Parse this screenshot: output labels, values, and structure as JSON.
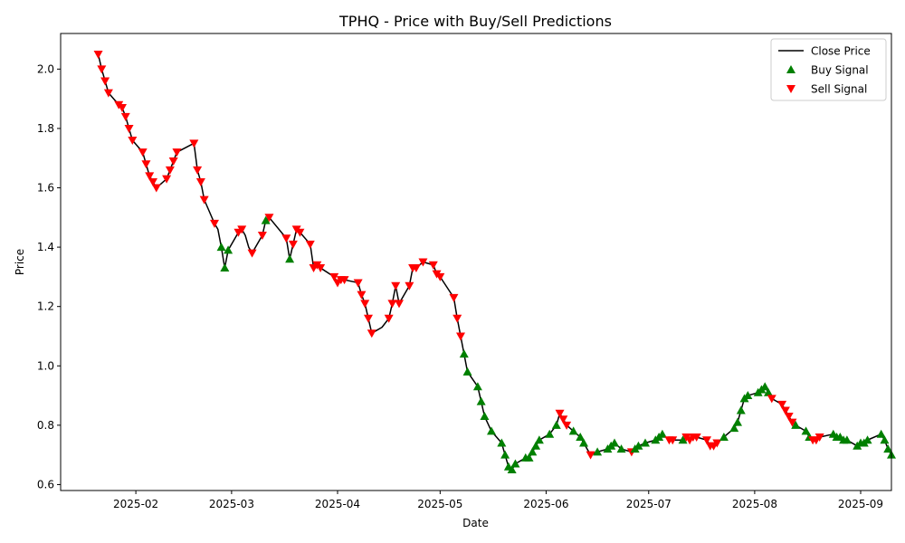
{
  "chart_data": {
    "type": "line",
    "title": "TPHQ - Price with Buy/Sell Predictions",
    "xlabel": "Date",
    "ylabel": "Price",
    "x_range": [
      "2025-01-10",
      "2025-09-10"
    ],
    "ylim": [
      0.58,
      2.12
    ],
    "x_ticks": [
      {
        "date": "2025-02-01",
        "label": "2025-02"
      },
      {
        "date": "2025-03-01",
        "label": "2025-03"
      },
      {
        "date": "2025-04-01",
        "label": "2025-04"
      },
      {
        "date": "2025-05-01",
        "label": "2025-05"
      },
      {
        "date": "2025-06-01",
        "label": "2025-06"
      },
      {
        "date": "2025-07-01",
        "label": "2025-07"
      },
      {
        "date": "2025-08-01",
        "label": "2025-08"
      },
      {
        "date": "2025-09-01",
        "label": "2025-09"
      }
    ],
    "y_ticks": [
      {
        "value": 0.6,
        "label": "0.6"
      },
      {
        "value": 0.8,
        "label": "0.8"
      },
      {
        "value": 1.0,
        "label": "1.0"
      },
      {
        "value": 1.2,
        "label": "1.2"
      },
      {
        "value": 1.4,
        "label": "1.4"
      },
      {
        "value": 1.6,
        "label": "1.6"
      },
      {
        "value": 1.8,
        "label": "1.8"
      },
      {
        "value": 2.0,
        "label": "2.0"
      }
    ],
    "grid": false,
    "legend": {
      "position": "upper right",
      "entries": [
        {
          "label": "Close Price",
          "kind": "line",
          "color": "#000000"
        },
        {
          "label": "Buy Signal",
          "kind": "buy",
          "color": "#008000"
        },
        {
          "label": "Sell Signal",
          "kind": "sell",
          "color": "#ff0000"
        }
      ]
    },
    "colors": {
      "line": "#000000",
      "buy": "#008000",
      "sell": "#ff0000"
    },
    "series": [
      {
        "name": "Close Price",
        "points": [
          {
            "date": "2025-01-21",
            "close": 2.05,
            "signal": "sell"
          },
          {
            "date": "2025-01-22",
            "close": 2.0,
            "signal": "sell"
          },
          {
            "date": "2025-01-23",
            "close": 1.96,
            "signal": "sell"
          },
          {
            "date": "2025-01-24",
            "close": 1.92,
            "signal": "sell"
          },
          {
            "date": "2025-01-27",
            "close": 1.88,
            "signal": "sell"
          },
          {
            "date": "2025-01-28",
            "close": 1.87,
            "signal": "sell"
          },
          {
            "date": "2025-01-29",
            "close": 1.84,
            "signal": "sell"
          },
          {
            "date": "2025-01-30",
            "close": 1.8,
            "signal": "sell"
          },
          {
            "date": "2025-01-31",
            "close": 1.76,
            "signal": "sell"
          },
          {
            "date": "2025-02-03",
            "close": 1.72,
            "signal": "sell"
          },
          {
            "date": "2025-02-04",
            "close": 1.68,
            "signal": "sell"
          },
          {
            "date": "2025-02-05",
            "close": 1.64,
            "signal": "sell"
          },
          {
            "date": "2025-02-06",
            "close": 1.62,
            "signal": "sell"
          },
          {
            "date": "2025-02-07",
            "close": 1.6,
            "signal": "sell"
          },
          {
            "date": "2025-02-10",
            "close": 1.63,
            "signal": "sell"
          },
          {
            "date": "2025-02-11",
            "close": 1.66,
            "signal": "sell"
          },
          {
            "date": "2025-02-12",
            "close": 1.69,
            "signal": "sell"
          },
          {
            "date": "2025-02-13",
            "close": 1.72,
            "signal": "sell"
          },
          {
            "date": "2025-02-18",
            "close": 1.75,
            "signal": "sell"
          },
          {
            "date": "2025-02-19",
            "close": 1.66,
            "signal": "sell"
          },
          {
            "date": "2025-02-20",
            "close": 1.62,
            "signal": "sell"
          },
          {
            "date": "2025-02-21",
            "close": 1.56,
            "signal": "sell"
          },
          {
            "date": "2025-02-24",
            "close": 1.48,
            "signal": "sell"
          },
          {
            "date": "2025-02-25",
            "close": 1.46,
            "signal": "none"
          },
          {
            "date": "2025-02-26",
            "close": 1.4,
            "signal": "buy"
          },
          {
            "date": "2025-02-27",
            "close": 1.33,
            "signal": "buy"
          },
          {
            "date": "2025-02-28",
            "close": 1.39,
            "signal": "buy"
          },
          {
            "date": "2025-03-03",
            "close": 1.45,
            "signal": "sell"
          },
          {
            "date": "2025-03-04",
            "close": 1.46,
            "signal": "sell"
          },
          {
            "date": "2025-03-05",
            "close": 1.44,
            "signal": "none"
          },
          {
            "date": "2025-03-06",
            "close": 1.4,
            "signal": "none"
          },
          {
            "date": "2025-03-07",
            "close": 1.38,
            "signal": "sell"
          },
          {
            "date": "2025-03-10",
            "close": 1.44,
            "signal": "sell"
          },
          {
            "date": "2025-03-11",
            "close": 1.49,
            "signal": "buy"
          },
          {
            "date": "2025-03-12",
            "close": 1.5,
            "signal": "sell"
          },
          {
            "date": "2025-03-17",
            "close": 1.43,
            "signal": "sell"
          },
          {
            "date": "2025-03-18",
            "close": 1.36,
            "signal": "buy"
          },
          {
            "date": "2025-03-19",
            "close": 1.41,
            "signal": "sell"
          },
          {
            "date": "2025-03-20",
            "close": 1.46,
            "signal": "sell"
          },
          {
            "date": "2025-03-21",
            "close": 1.45,
            "signal": "sell"
          },
          {
            "date": "2025-03-24",
            "close": 1.41,
            "signal": "sell"
          },
          {
            "date": "2025-03-25",
            "close": 1.33,
            "signal": "sell"
          },
          {
            "date": "2025-03-26",
            "close": 1.34,
            "signal": "sell"
          },
          {
            "date": "2025-03-27",
            "close": 1.33,
            "signal": "sell"
          },
          {
            "date": "2025-03-31",
            "close": 1.3,
            "signal": "sell"
          },
          {
            "date": "2025-04-01",
            "close": 1.28,
            "signal": "sell"
          },
          {
            "date": "2025-04-02",
            "close": 1.29,
            "signal": "sell"
          },
          {
            "date": "2025-04-03",
            "close": 1.29,
            "signal": "sell"
          },
          {
            "date": "2025-04-07",
            "close": 1.28,
            "signal": "sell"
          },
          {
            "date": "2025-04-08",
            "close": 1.24,
            "signal": "sell"
          },
          {
            "date": "2025-04-09",
            "close": 1.21,
            "signal": "sell"
          },
          {
            "date": "2025-04-10",
            "close": 1.16,
            "signal": "sell"
          },
          {
            "date": "2025-04-11",
            "close": 1.11,
            "signal": "sell"
          },
          {
            "date": "2025-04-14",
            "close": 1.13,
            "signal": "none"
          },
          {
            "date": "2025-04-16",
            "close": 1.16,
            "signal": "sell"
          },
          {
            "date": "2025-04-17",
            "close": 1.21,
            "signal": "sell"
          },
          {
            "date": "2025-04-18",
            "close": 1.27,
            "signal": "sell"
          },
          {
            "date": "2025-04-19",
            "close": 1.21,
            "signal": "sell"
          },
          {
            "date": "2025-04-22",
            "close": 1.27,
            "signal": "sell"
          },
          {
            "date": "2025-04-23",
            "close": 1.33,
            "signal": "sell"
          },
          {
            "date": "2025-04-24",
            "close": 1.33,
            "signal": "sell"
          },
          {
            "date": "2025-04-26",
            "close": 1.35,
            "signal": "sell"
          },
          {
            "date": "2025-04-29",
            "close": 1.34,
            "signal": "sell"
          },
          {
            "date": "2025-04-30",
            "close": 1.31,
            "signal": "sell"
          },
          {
            "date": "2025-05-01",
            "close": 1.3,
            "signal": "sell"
          },
          {
            "date": "2025-05-05",
            "close": 1.23,
            "signal": "sell"
          },
          {
            "date": "2025-05-06",
            "close": 1.16,
            "signal": "sell"
          },
          {
            "date": "2025-05-07",
            "close": 1.1,
            "signal": "sell"
          },
          {
            "date": "2025-05-08",
            "close": 1.04,
            "signal": "buy"
          },
          {
            "date": "2025-05-09",
            "close": 0.98,
            "signal": "buy"
          },
          {
            "date": "2025-05-12",
            "close": 0.93,
            "signal": "buy"
          },
          {
            "date": "2025-05-13",
            "close": 0.88,
            "signal": "buy"
          },
          {
            "date": "2025-05-14",
            "close": 0.83,
            "signal": "buy"
          },
          {
            "date": "2025-05-16",
            "close": 0.78,
            "signal": "buy"
          },
          {
            "date": "2025-05-19",
            "close": 0.74,
            "signal": "buy"
          },
          {
            "date": "2025-05-20",
            "close": 0.7,
            "signal": "buy"
          },
          {
            "date": "2025-05-21",
            "close": 0.66,
            "signal": "buy"
          },
          {
            "date": "2025-05-22",
            "close": 0.65,
            "signal": "buy"
          },
          {
            "date": "2025-05-23",
            "close": 0.67,
            "signal": "buy"
          },
          {
            "date": "2025-05-26",
            "close": 0.69,
            "signal": "buy"
          },
          {
            "date": "2025-05-27",
            "close": 0.69,
            "signal": "buy"
          },
          {
            "date": "2025-05-28",
            "close": 0.71,
            "signal": "buy"
          },
          {
            "date": "2025-05-29",
            "close": 0.73,
            "signal": "buy"
          },
          {
            "date": "2025-05-30",
            "close": 0.75,
            "signal": "buy"
          },
          {
            "date": "2025-06-02",
            "close": 0.77,
            "signal": "buy"
          },
          {
            "date": "2025-06-04",
            "close": 0.8,
            "signal": "buy"
          },
          {
            "date": "2025-06-05",
            "close": 0.84,
            "signal": "sell"
          },
          {
            "date": "2025-06-06",
            "close": 0.82,
            "signal": "sell"
          },
          {
            "date": "2025-06-07",
            "close": 0.8,
            "signal": "sell"
          },
          {
            "date": "2025-06-09",
            "close": 0.78,
            "signal": "buy"
          },
          {
            "date": "2025-06-11",
            "close": 0.76,
            "signal": "buy"
          },
          {
            "date": "2025-06-12",
            "close": 0.74,
            "signal": "buy"
          },
          {
            "date": "2025-06-13",
            "close": 0.72,
            "signal": "none"
          },
          {
            "date": "2025-06-14",
            "close": 0.7,
            "signal": "sell"
          },
          {
            "date": "2025-06-16",
            "close": 0.71,
            "signal": "buy"
          },
          {
            "date": "2025-06-19",
            "close": 0.72,
            "signal": "buy"
          },
          {
            "date": "2025-06-20",
            "close": 0.73,
            "signal": "buy"
          },
          {
            "date": "2025-06-21",
            "close": 0.74,
            "signal": "buy"
          },
          {
            "date": "2025-06-23",
            "close": 0.72,
            "signal": "buy"
          },
          {
            "date": "2025-06-26",
            "close": 0.71,
            "signal": "sell"
          },
          {
            "date": "2025-06-27",
            "close": 0.72,
            "signal": "buy"
          },
          {
            "date": "2025-06-28",
            "close": 0.73,
            "signal": "buy"
          },
          {
            "date": "2025-06-30",
            "close": 0.74,
            "signal": "buy"
          },
          {
            "date": "2025-07-03",
            "close": 0.75,
            "signal": "buy"
          },
          {
            "date": "2025-07-04",
            "close": 0.76,
            "signal": "buy"
          },
          {
            "date": "2025-07-05",
            "close": 0.77,
            "signal": "buy"
          },
          {
            "date": "2025-07-07",
            "close": 0.75,
            "signal": "sell"
          },
          {
            "date": "2025-07-08",
            "close": 0.75,
            "signal": "sell"
          },
          {
            "date": "2025-07-11",
            "close": 0.75,
            "signal": "buy"
          },
          {
            "date": "2025-07-12",
            "close": 0.76,
            "signal": "sell"
          },
          {
            "date": "2025-07-13",
            "close": 0.75,
            "signal": "sell"
          },
          {
            "date": "2025-07-14",
            "close": 0.76,
            "signal": "sell"
          },
          {
            "date": "2025-07-15",
            "close": 0.76,
            "signal": "sell"
          },
          {
            "date": "2025-07-18",
            "close": 0.75,
            "signal": "sell"
          },
          {
            "date": "2025-07-19",
            "close": 0.73,
            "signal": "sell"
          },
          {
            "date": "2025-07-20",
            "close": 0.73,
            "signal": "sell"
          },
          {
            "date": "2025-07-21",
            "close": 0.74,
            "signal": "sell"
          },
          {
            "date": "2025-07-23",
            "close": 0.76,
            "signal": "buy"
          },
          {
            "date": "2025-07-26",
            "close": 0.79,
            "signal": "buy"
          },
          {
            "date": "2025-07-27",
            "close": 0.81,
            "signal": "buy"
          },
          {
            "date": "2025-07-28",
            "close": 0.85,
            "signal": "buy"
          },
          {
            "date": "2025-07-29",
            "close": 0.89,
            "signal": "buy"
          },
          {
            "date": "2025-07-30",
            "close": 0.9,
            "signal": "buy"
          },
          {
            "date": "2025-08-02",
            "close": 0.91,
            "signal": "buy"
          },
          {
            "date": "2025-08-03",
            "close": 0.92,
            "signal": "buy"
          },
          {
            "date": "2025-08-04",
            "close": 0.93,
            "signal": "buy"
          },
          {
            "date": "2025-08-05",
            "close": 0.91,
            "signal": "buy"
          },
          {
            "date": "2025-08-06",
            "close": 0.89,
            "signal": "sell"
          },
          {
            "date": "2025-08-09",
            "close": 0.87,
            "signal": "sell"
          },
          {
            "date": "2025-08-10",
            "close": 0.85,
            "signal": "sell"
          },
          {
            "date": "2025-08-11",
            "close": 0.83,
            "signal": "sell"
          },
          {
            "date": "2025-08-12",
            "close": 0.81,
            "signal": "sell"
          },
          {
            "date": "2025-08-13",
            "close": 0.8,
            "signal": "buy"
          },
          {
            "date": "2025-08-16",
            "close": 0.78,
            "signal": "buy"
          },
          {
            "date": "2025-08-17",
            "close": 0.76,
            "signal": "buy"
          },
          {
            "date": "2025-08-18",
            "close": 0.75,
            "signal": "sell"
          },
          {
            "date": "2025-08-19",
            "close": 0.75,
            "signal": "sell"
          },
          {
            "date": "2025-08-20",
            "close": 0.76,
            "signal": "sell"
          },
          {
            "date": "2025-08-24",
            "close": 0.77,
            "signal": "buy"
          },
          {
            "date": "2025-08-25",
            "close": 0.76,
            "signal": "buy"
          },
          {
            "date": "2025-08-26",
            "close": 0.76,
            "signal": "buy"
          },
          {
            "date": "2025-08-27",
            "close": 0.75,
            "signal": "buy"
          },
          {
            "date": "2025-08-28",
            "close": 0.75,
            "signal": "buy"
          },
          {
            "date": "2025-08-31",
            "close": 0.73,
            "signal": "buy"
          },
          {
            "date": "2025-09-01",
            "close": 0.74,
            "signal": "buy"
          },
          {
            "date": "2025-09-02",
            "close": 0.74,
            "signal": "buy"
          },
          {
            "date": "2025-09-03",
            "close": 0.75,
            "signal": "buy"
          },
          {
            "date": "2025-09-07",
            "close": 0.77,
            "signal": "buy"
          },
          {
            "date": "2025-09-08",
            "close": 0.75,
            "signal": "buy"
          },
          {
            "date": "2025-09-09",
            "close": 0.72,
            "signal": "buy"
          },
          {
            "date": "2025-09-10",
            "close": 0.7,
            "signal": "buy"
          }
        ]
      }
    ]
  }
}
